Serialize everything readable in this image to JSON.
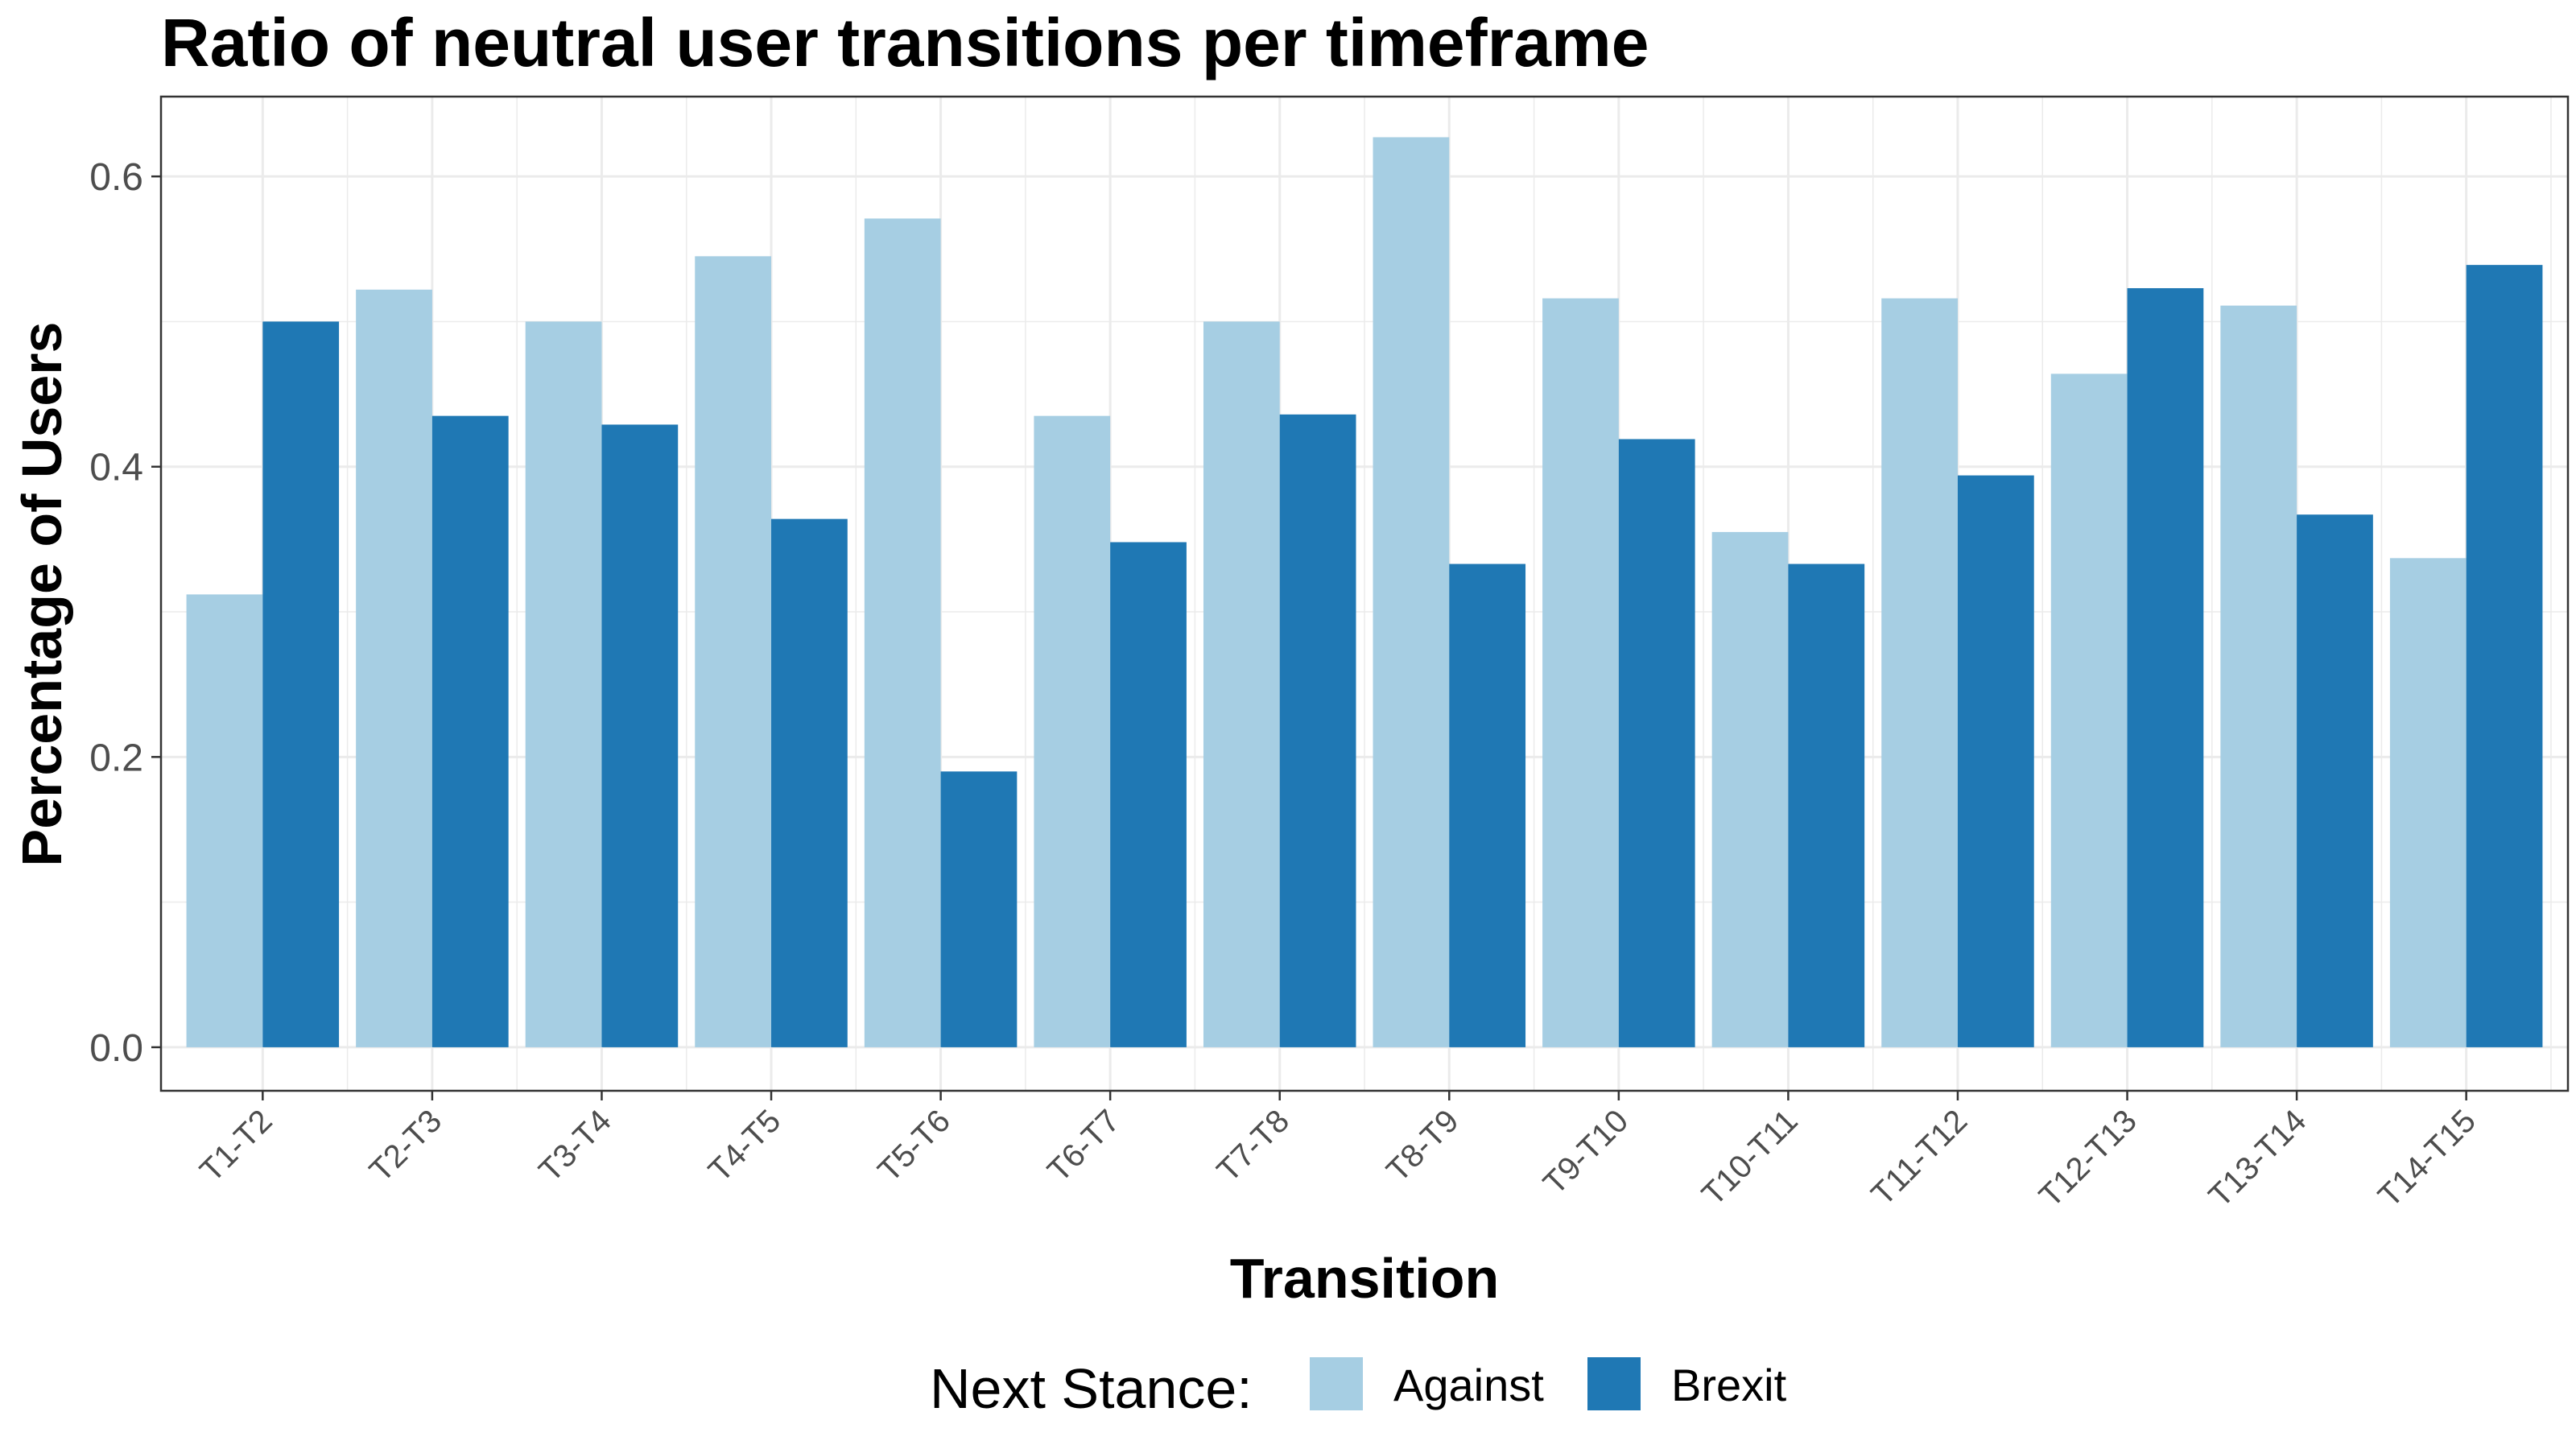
{
  "chart_data": {
    "type": "bar",
    "title": "Ratio of neutral user transitions per timeframe",
    "xlabel": "Transition",
    "ylabel": "Percentage of Users",
    "categories": [
      "T1-T2",
      "T2-T3",
      "T3-T4",
      "T4-T5",
      "T5-T6",
      "T6-T7",
      "T7-T8",
      "T8-T9",
      "T9-T10",
      "T10-T11",
      "T11-T12",
      "T12-T13",
      "T13-T14",
      "T14-T15"
    ],
    "series": [
      {
        "name": "Against",
        "color": "#a6cee3",
        "values": [
          0.312,
          0.522,
          0.5,
          0.545,
          0.571,
          0.435,
          0.5,
          0.627,
          0.516,
          0.355,
          0.516,
          0.464,
          0.511,
          0.337
        ]
      },
      {
        "name": "Brexit",
        "color": "#1f78b4",
        "values": [
          0.5,
          0.435,
          0.429,
          0.364,
          0.19,
          0.348,
          0.436,
          0.333,
          0.419,
          0.333,
          0.394,
          0.523,
          0.367,
          0.539
        ]
      }
    ],
    "ylim": [
      -0.03,
      0.655
    ],
    "yticks": [
      "0.0",
      "0.2",
      "0.4",
      "0.6"
    ],
    "grid": true,
    "legend": {
      "title": "Next Stance:",
      "placement": "bottom"
    }
  }
}
